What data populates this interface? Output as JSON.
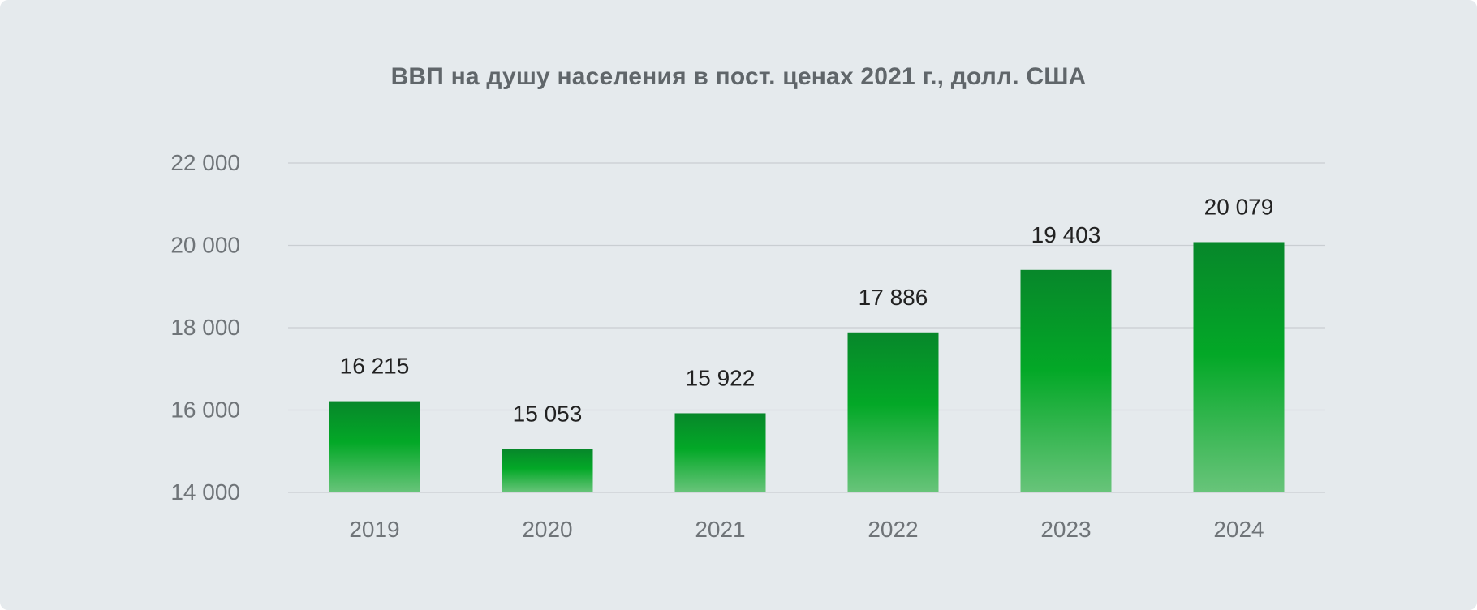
{
  "chart_data": {
    "type": "bar",
    "title": "ВВП на душу населения в пост. ценах 2021 г., долл. США",
    "xlabel": "",
    "ylabel": "",
    "categories": [
      "2019",
      "2020",
      "2021",
      "2022",
      "2023",
      "2024"
    ],
    "values": [
      16215,
      15053,
      15922,
      17886,
      19403,
      20079
    ],
    "value_labels": [
      "16 215",
      "15 053",
      "15 922",
      "17 886",
      "19 403",
      "20 079"
    ],
    "ylim": [
      14000,
      22000
    ],
    "yticks": [
      14000,
      16000,
      18000,
      20000,
      22000
    ],
    "ytick_labels": [
      "14 000",
      "16 000",
      "18 000",
      "20 000",
      "22 000"
    ],
    "grid": true,
    "legend": "none",
    "colors": {
      "bar_top": "#07872a",
      "bar_mid": "#03a827",
      "bar_bottom": "#68c47a",
      "background": "#e5eaed"
    }
  }
}
